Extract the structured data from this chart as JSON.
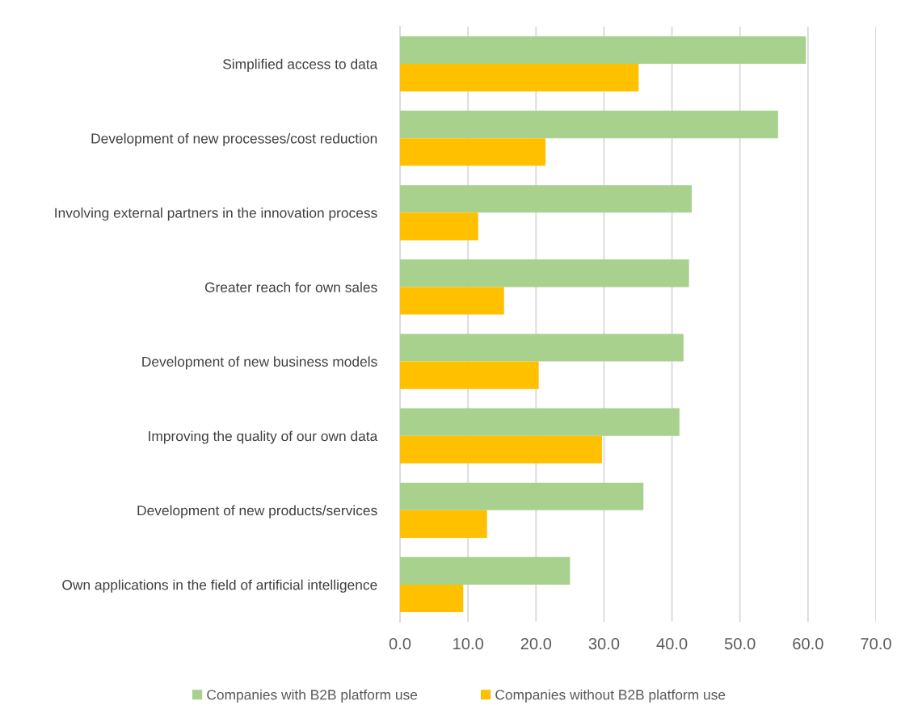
{
  "chart_data": {
    "type": "bar",
    "orientation": "horizontal",
    "categories": [
      "Simplified access to data",
      "Development of new processes/cost reduction",
      "Involving external partners in the innovation process",
      "Greater reach for own sales",
      "Development of new business models",
      "Improving the quality of our own data",
      "Development of new products/services",
      "Own applications in the field of artificial intelligence"
    ],
    "series": [
      {
        "name": "Companies with B2B platform use",
        "color": "#a9d18e",
        "values": [
          59.7,
          55.6,
          42.9,
          42.5,
          41.7,
          41.1,
          35.8,
          25.0
        ]
      },
      {
        "name": "Companies without B2B platform use",
        "color": "#ffc000",
        "values": [
          35.1,
          21.4,
          11.5,
          15.3,
          20.4,
          29.7,
          12.8,
          9.3
        ]
      }
    ],
    "xlim": [
      0,
      70
    ],
    "xticks": [
      {
        "value": 0,
        "label": "0.0"
      },
      {
        "value": 10,
        "label": "10.0"
      },
      {
        "value": 20,
        "label": "20.0"
      },
      {
        "value": 30,
        "label": "30.0"
      },
      {
        "value": 40,
        "label": "40.0"
      },
      {
        "value": 50,
        "label": "50.0"
      },
      {
        "value": 60,
        "label": "60.0"
      },
      {
        "value": 70,
        "label": "70.0"
      }
    ],
    "grid": "x",
    "legend": "bottom"
  }
}
